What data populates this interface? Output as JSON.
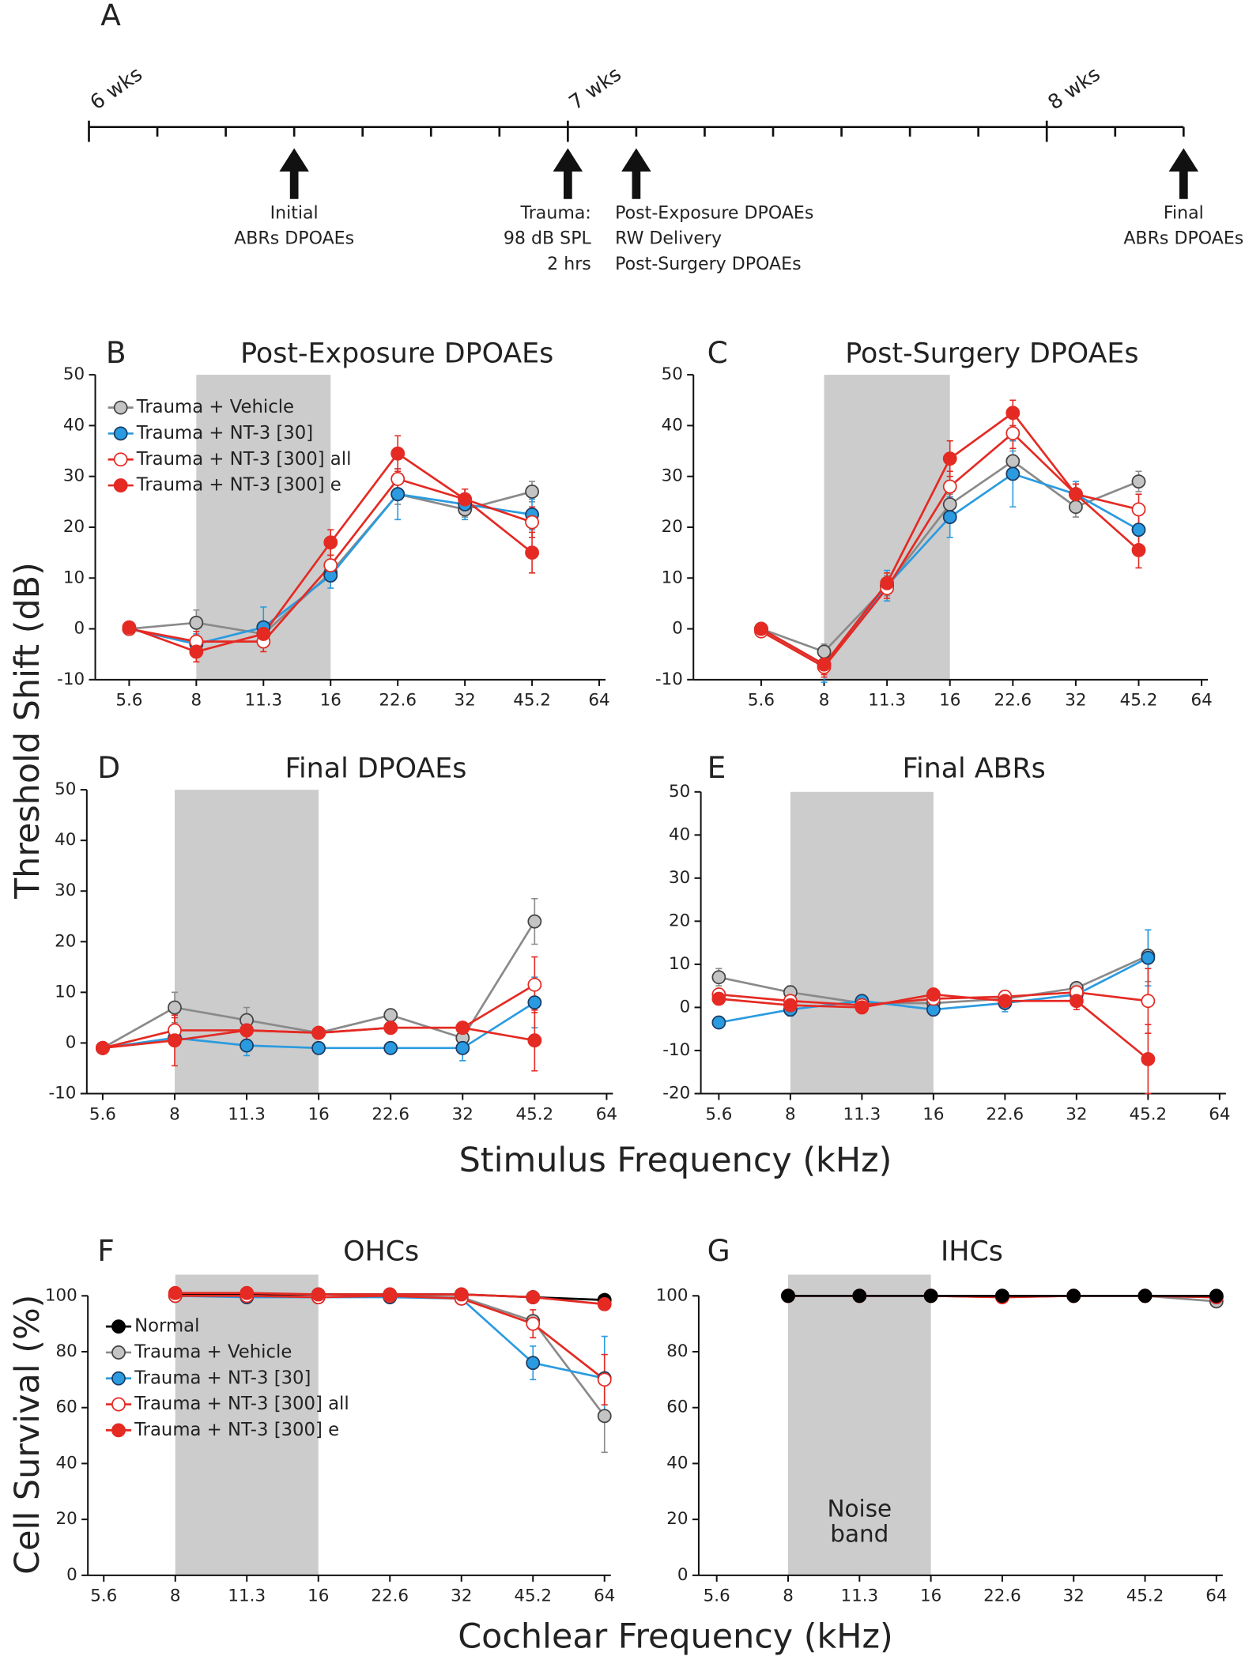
{
  "timeline": {
    "letter": "A",
    "xlim": [
      42,
      58
    ],
    "ticks": [
      42,
      43,
      44,
      45,
      46,
      47,
      48,
      49,
      50,
      51,
      52,
      53,
      54,
      55,
      56,
      57,
      58
    ],
    "weeks": [
      {
        "day": 42,
        "label": "6 wks"
      },
      {
        "day": 49,
        "label": "7 wks"
      },
      {
        "day": 56,
        "label": "8 wks"
      }
    ],
    "events": [
      {
        "day": 45,
        "align": "middle",
        "lines": [
          "Initial",
          "ABRs DPOAEs"
        ]
      },
      {
        "day": 49,
        "align": "end",
        "lines": [
          "Trauma:",
          "98 dB SPL",
          "2 hrs"
        ]
      },
      {
        "day": 50,
        "align": "start",
        "lines": [
          "Post-Exposure DPOAEs",
          "RW Delivery",
          "Post-Surgery DPOAEs"
        ]
      },
      {
        "day": 58,
        "align": "middle",
        "lines": [
          "Final",
          "ABRs DPOAEs"
        ]
      }
    ]
  },
  "labels": {
    "threshold": "Threshold Shift (dB)",
    "stimulus": "Stimulus Frequency (kHz)",
    "survival": "Cell Survival (%)",
    "cochlear": "Cochlear Frequency (kHz)"
  },
  "chart_data": [
    {
      "type": "line",
      "letter": "B",
      "title": "Post-Exposure DPOAEs",
      "legend": true,
      "categories": [
        "5.6",
        "8",
        "11.3",
        "16",
        "22.6",
        "32",
        "45.2",
        "64"
      ],
      "shaded": [
        "8",
        "16"
      ],
      "ylim": [
        -10,
        50
      ],
      "yticks": [
        -10,
        0,
        10,
        20,
        30,
        40,
        50
      ],
      "series": [
        {
          "name": "Trauma + Vehicle",
          "color": "#8a8a8a",
          "marker_fill": "#c4c4c4",
          "marker_stroke": "#444",
          "values": [
            0,
            1.2,
            -1,
            11,
            26.5,
            23.5,
            27,
            null
          ],
          "errors": [
            1,
            2.5,
            2,
            1.5,
            2,
            1.5,
            2,
            null
          ]
        },
        {
          "name": "Trauma + NT-3 [30]",
          "color": "#2a9be0",
          "marker_fill": "#2a9be0",
          "marker_stroke": "#1b3b63",
          "values": [
            0,
            -3,
            0.3,
            10.5,
            26.5,
            24.5,
            22.5,
            null
          ],
          "errors": [
            1,
            2,
            4,
            2.5,
            5,
            3,
            3,
            null
          ]
        },
        {
          "name": "Trauma + NT-3 [300] all",
          "color": "#e42a23",
          "marker_fill": "#ffffff",
          "marker_stroke": "#e42a23",
          "values": [
            0,
            -2.5,
            -2.5,
            12.5,
            29.5,
            25.5,
            21,
            null
          ],
          "errors": [
            1,
            2,
            2,
            2,
            2,
            2,
            3,
            null
          ]
        },
        {
          "name": "Trauma + NT-3 [300] e",
          "color": "#e42a23",
          "marker_fill": "#e42a23",
          "marker_stroke": "#e42a23",
          "values": [
            0.3,
            -4.5,
            -1,
            17,
            34.5,
            25.5,
            15,
            null
          ],
          "errors": [
            1,
            2,
            2,
            2.5,
            3.5,
            2,
            4,
            null
          ]
        }
      ]
    },
    {
      "type": "line",
      "letter": "C",
      "title": "Post-Surgery DPOAEs",
      "legend": false,
      "categories": [
        "5.6",
        "8",
        "11.3",
        "16",
        "22.6",
        "32",
        "45.2",
        "64"
      ],
      "shaded": [
        "8",
        "16"
      ],
      "ylim": [
        -10,
        50
      ],
      "yticks": [
        -10,
        0,
        10,
        20,
        30,
        40,
        50
      ],
      "series": [
        {
          "color": "#8a8a8a",
          "marker_fill": "#c4c4c4",
          "marker_stroke": "#444",
          "values": [
            0,
            -4.5,
            8.5,
            24.5,
            33,
            24,
            29,
            null
          ],
          "errors": [
            1,
            1.5,
            2,
            2,
            2,
            2,
            2,
            null
          ]
        },
        {
          "color": "#2a9be0",
          "marker_fill": "#2a9be0",
          "marker_stroke": "#1b3b63",
          "values": [
            0,
            -7,
            8.5,
            22,
            30.5,
            26.5,
            19.5,
            null
          ],
          "errors": [
            1,
            3.5,
            3,
            4,
            6.5,
            2.5,
            3,
            null
          ]
        },
        {
          "color": "#e42a23",
          "marker_fill": "#ffffff",
          "marker_stroke": "#e42a23",
          "values": [
            -0.5,
            -7.5,
            8,
            28,
            38.5,
            26.5,
            23.5,
            null
          ],
          "errors": [
            1,
            2,
            2,
            3,
            3,
            2,
            3,
            null
          ]
        },
        {
          "color": "#e42a23",
          "marker_fill": "#e42a23",
          "marker_stroke": "#e42a23",
          "values": [
            0,
            -7,
            9,
            33.5,
            42.5,
            26.5,
            15.5,
            null
          ],
          "errors": [
            1,
            2,
            2,
            3.5,
            2.5,
            2,
            3.5,
            null
          ]
        }
      ]
    },
    {
      "type": "line",
      "letter": "D",
      "title": "Final DPOAEs",
      "legend": false,
      "categories": [
        "5.6",
        "8",
        "11.3",
        "16",
        "22.6",
        "32",
        "45.2",
        "64"
      ],
      "shaded": [
        "8",
        "16"
      ],
      "ylim": [
        -10,
        50
      ],
      "yticks": [
        -10,
        0,
        10,
        20,
        30,
        40,
        50
      ],
      "series": [
        {
          "color": "#8a8a8a",
          "marker_fill": "#c4c4c4",
          "marker_stroke": "#444",
          "values": [
            -1,
            7,
            4.5,
            2,
            5.5,
            1,
            24,
            null
          ],
          "errors": [
            1,
            3,
            2.5,
            1,
            1,
            1,
            4.5,
            null
          ]
        },
        {
          "color": "#2a9be0",
          "marker_fill": "#2a9be0",
          "marker_stroke": "#1b3b63",
          "values": [
            -1,
            1,
            -0.5,
            -1,
            -1,
            -1,
            8,
            null
          ],
          "errors": [
            0.5,
            1.5,
            2,
            0.5,
            0.5,
            2.5,
            5,
            null
          ]
        },
        {
          "color": "#e42a23",
          "marker_fill": "#ffffff",
          "marker_stroke": "#e42a23",
          "values": [
            -1,
            2.5,
            2.5,
            2,
            3,
            3,
            11.5,
            null
          ],
          "errors": [
            0.5,
            2.5,
            2,
            1,
            1,
            1,
            5.5,
            null
          ]
        },
        {
          "color": "#e42a23",
          "marker_fill": "#e42a23",
          "marker_stroke": "#e42a23",
          "values": [
            -1,
            0.5,
            2.5,
            2,
            3,
            3,
            0.5,
            null
          ],
          "errors": [
            0.5,
            5,
            2,
            1,
            1,
            1,
            6,
            null
          ]
        }
      ]
    },
    {
      "type": "line",
      "letter": "E",
      "title": "Final ABRs",
      "legend": false,
      "categories": [
        "5.6",
        "8",
        "11.3",
        "16",
        "22.6",
        "32",
        "45.2",
        "64"
      ],
      "shaded": [
        "8",
        "16"
      ],
      "ylim": [
        -20,
        50
      ],
      "yticks": [
        -20,
        -10,
        0,
        10,
        20,
        30,
        40,
        50
      ],
      "series": [
        {
          "color": "#8a8a8a",
          "marker_fill": "#c4c4c4",
          "marker_stroke": "#444",
          "values": [
            7,
            3.5,
            1,
            1,
            2,
            4.5,
            12,
            null
          ],
          "errors": [
            2,
            1.5,
            1,
            1,
            1,
            1,
            6,
            null
          ]
        },
        {
          "color": "#2a9be0",
          "marker_fill": "#2a9be0",
          "marker_stroke": "#1b3b63",
          "values": [
            -3.5,
            -0.5,
            1.5,
            -0.5,
            1,
            3,
            11.5,
            null
          ],
          "errors": [
            0.5,
            1.5,
            1,
            1,
            2,
            1,
            6.5,
            null
          ]
        },
        {
          "color": "#e42a23",
          "marker_fill": "#ffffff",
          "marker_stroke": "#e42a23",
          "values": [
            3,
            1.5,
            0.5,
            2,
            2.5,
            3.5,
            1.5,
            null
          ],
          "errors": [
            1,
            1,
            1,
            1,
            1,
            1,
            7.5,
            null
          ]
        },
        {
          "color": "#e42a23",
          "marker_fill": "#e42a23",
          "marker_stroke": "#e42a23",
          "values": [
            2,
            0.5,
            0,
            3,
            1.5,
            1.5,
            -12,
            null
          ],
          "errors": [
            1,
            1,
            1,
            1,
            1,
            2,
            8,
            null
          ]
        }
      ]
    },
    {
      "type": "line",
      "letter": "F",
      "title": "OHCs",
      "legend": true,
      "categories": [
        "5.6",
        "8",
        "11.3",
        "16",
        "22.6",
        "32",
        "45.2",
        "64"
      ],
      "shaded": [
        "8",
        "16"
      ],
      "ylim": [
        0,
        100
      ],
      "yticks": [
        0,
        20,
        40,
        60,
        80,
        100
      ],
      "series": [
        {
          "name": "Normal",
          "color": "#000000",
          "marker_fill": "#000000",
          "marker_stroke": "#000000",
          "values": [
            null,
            100.5,
            100.5,
            100.5,
            100.5,
            100.5,
            99.5,
            98.5
          ]
        },
        {
          "name": "Trauma + Vehicle",
          "color": "#8a8a8a",
          "marker_fill": "#c4c4c4",
          "marker_stroke": "#444",
          "values": [
            null,
            100,
            100,
            99.5,
            100,
            99.5,
            91,
            57
          ],
          "errors": [
            null,
            null,
            null,
            null,
            null,
            null,
            2,
            13
          ]
        },
        {
          "name": "Trauma + NT-3 [30]",
          "color": "#2a9be0",
          "marker_fill": "#2a9be0",
          "marker_stroke": "#1b3b63",
          "values": [
            null,
            100,
            99.5,
            99.5,
            99.5,
            99,
            76,
            70.5
          ],
          "errors": [
            null,
            null,
            null,
            null,
            null,
            null,
            6,
            15
          ]
        },
        {
          "name": "Trauma + NT-3 [300] all",
          "color": "#e42a23",
          "marker_fill": "#ffffff",
          "marker_stroke": "#e42a23",
          "values": [
            null,
            100,
            100,
            99.5,
            100,
            99,
            90,
            70
          ],
          "errors": [
            null,
            null,
            null,
            null,
            null,
            null,
            5,
            9
          ]
        },
        {
          "name": "Trauma + NT-3 [300] e",
          "color": "#e42a23",
          "marker_fill": "#e42a23",
          "marker_stroke": "#e42a23",
          "values": [
            null,
            101,
            101,
            100.5,
            100.5,
            100.5,
            99.5,
            97
          ],
          "errors": [
            null,
            null,
            null,
            null,
            null,
            null,
            1,
            2
          ]
        }
      ]
    },
    {
      "type": "line",
      "letter": "G",
      "title": "IHCs",
      "legend": false,
      "annotation": [
        "Noise",
        "band"
      ],
      "categories": [
        "5.6",
        "8",
        "11.3",
        "16",
        "22.6",
        "32",
        "45.2",
        "64"
      ],
      "shaded": [
        "8",
        "16"
      ],
      "ylim": [
        0,
        100
      ],
      "yticks": [
        0,
        20,
        40,
        60,
        80,
        100
      ],
      "series": [
        {
          "color": "#8a8a8a",
          "marker_fill": "#c4c4c4",
          "marker_stroke": "#444",
          "values": [
            null,
            100,
            100,
            100,
            100,
            100,
            100,
            98
          ]
        },
        {
          "color": "#2a9be0",
          "marker_fill": "#2a9be0",
          "marker_stroke": "#1b3b63",
          "values": [
            null,
            100,
            100,
            100,
            100,
            100,
            100,
            99.5
          ]
        },
        {
          "color": "#e42a23",
          "marker_fill": "#ffffff",
          "marker_stroke": "#e42a23",
          "values": [
            null,
            100,
            100,
            100,
            99.5,
            100,
            100,
            99.5
          ]
        },
        {
          "color": "#e42a23",
          "marker_fill": "#e42a23",
          "marker_stroke": "#e42a23",
          "values": [
            null,
            100,
            100,
            100,
            99.5,
            100,
            100,
            99.5
          ]
        },
        {
          "color": "#000000",
          "marker_fill": "#000000",
          "marker_stroke": "#000000",
          "values": [
            null,
            100,
            100,
            100,
            100,
            100,
            100,
            100
          ]
        }
      ]
    }
  ]
}
